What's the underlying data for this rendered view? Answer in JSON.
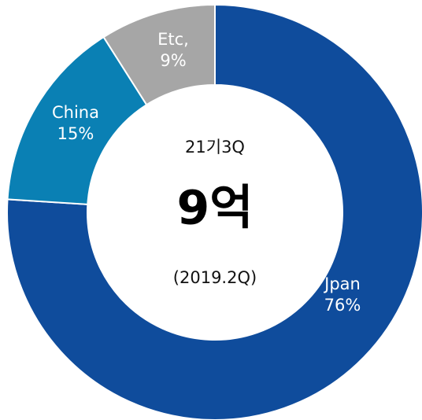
{
  "chart_data": {
    "type": "donut",
    "categories": [
      "Jpan",
      "China",
      "Etc,"
    ],
    "values": [
      76,
      15,
      9
    ],
    "value_labels": [
      "76%",
      "15%",
      "9%"
    ],
    "colors": [
      "#0f4c9c",
      "#0a80b4",
      "#a6a6a6"
    ],
    "center_top": "21기3Q",
    "center_main": "9억",
    "center_bottom": "(2019.2Q)"
  }
}
